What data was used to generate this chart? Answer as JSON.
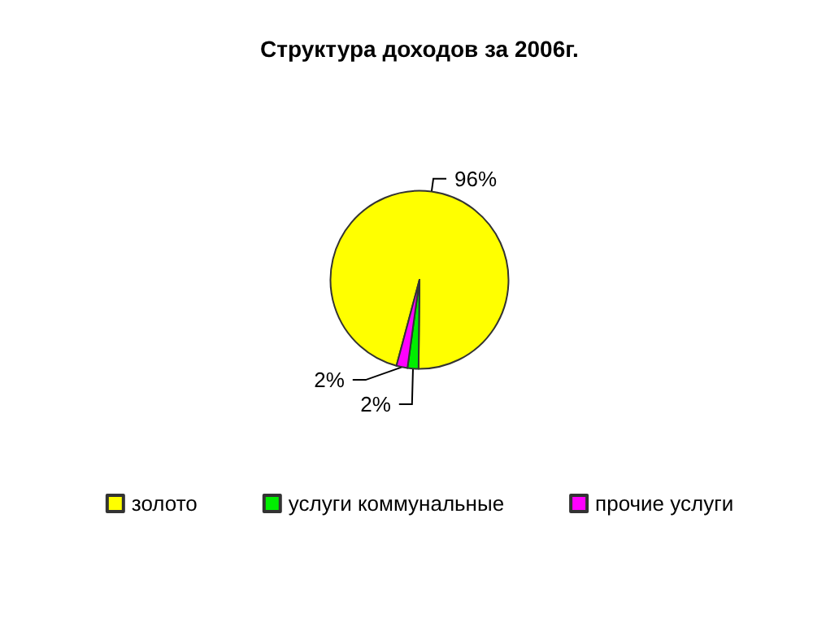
{
  "chart_data": {
    "type": "pie",
    "title": "Структура доходов за 2006г.",
    "categories": [
      "золото",
      "услуги коммунальные",
      "прочие услуги"
    ],
    "values": [
      96,
      2,
      2
    ],
    "value_labels": [
      "96%",
      "2%",
      "2%"
    ],
    "colors": [
      "#ffff00",
      "#00ee00",
      "#ff00ff"
    ],
    "legend": "bottom"
  }
}
